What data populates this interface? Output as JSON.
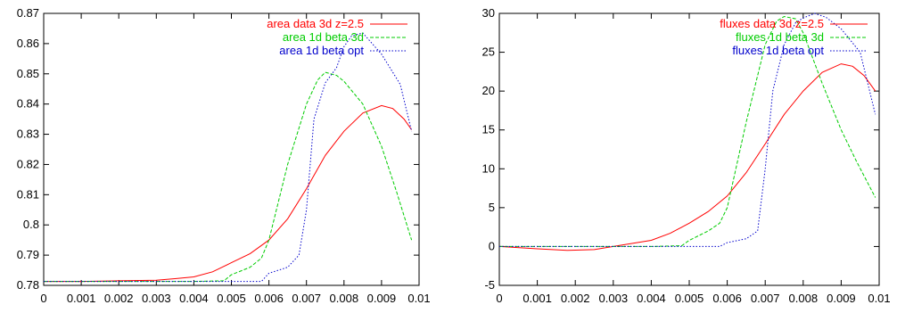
{
  "chart_data": [
    {
      "type": "line",
      "title": "",
      "xlabel": "",
      "ylabel": "",
      "xlim": [
        0,
        0.01
      ],
      "ylim": [
        0.78,
        0.87
      ],
      "xticks": [
        "0",
        "0.001",
        "0.002",
        "0.003",
        "0.004",
        "0.005",
        "0.006",
        "0.007",
        "0.008",
        "0.009",
        "0.01"
      ],
      "yticks": [
        "0.78",
        "0.79",
        "0.8",
        "0.81",
        "0.82",
        "0.83",
        "0.84",
        "0.85",
        "0.86",
        "0.87"
      ],
      "grid": false,
      "legend_position": "top-right",
      "series": [
        {
          "name": "area data 3d z=2.5",
          "color": "#ff0000",
          "style": "solid",
          "x": [
            0,
            0.001,
            0.002,
            0.003,
            0.0035,
            0.004,
            0.0045,
            0.005,
            0.0055,
            0.006,
            0.0065,
            0.007,
            0.0075,
            0.008,
            0.0085,
            0.009,
            0.0093,
            0.0096,
            0.0098
          ],
          "y": [
            0.7813,
            0.7813,
            0.7815,
            0.7817,
            0.7822,
            0.7828,
            0.7845,
            0.7875,
            0.7905,
            0.795,
            0.802,
            0.812,
            0.823,
            0.831,
            0.837,
            0.8395,
            0.8385,
            0.835,
            0.8315
          ]
        },
        {
          "name": "area 1d beta 3d",
          "color": "#00cc00",
          "style": "dashed",
          "x": [
            0,
            0.001,
            0.002,
            0.003,
            0.004,
            0.0048,
            0.005,
            0.0055,
            0.0058,
            0.006,
            0.0065,
            0.007,
            0.0073,
            0.0075,
            0.0078,
            0.008,
            0.0085,
            0.009,
            0.0094,
            0.0098
          ],
          "y": [
            0.7813,
            0.7813,
            0.7813,
            0.7813,
            0.7813,
            0.7815,
            0.7835,
            0.786,
            0.789,
            0.795,
            0.82,
            0.84,
            0.848,
            0.8505,
            0.8495,
            0.8475,
            0.84,
            0.826,
            0.811,
            0.795
          ]
        },
        {
          "name": "area 1d beta opt",
          "color": "#0000cc",
          "style": "dotted",
          "x": [
            0,
            0.001,
            0.002,
            0.003,
            0.004,
            0.005,
            0.0058,
            0.006,
            0.0065,
            0.0068,
            0.007,
            0.0072,
            0.0075,
            0.0078,
            0.008,
            0.0082,
            0.0085,
            0.009,
            0.0095,
            0.0098
          ],
          "y": [
            0.7813,
            0.7813,
            0.7813,
            0.7813,
            0.7813,
            0.7813,
            0.7813,
            0.784,
            0.786,
            0.79,
            0.805,
            0.835,
            0.847,
            0.852,
            0.859,
            0.8625,
            0.8635,
            0.8565,
            0.8465,
            0.831
          ]
        }
      ]
    },
    {
      "type": "line",
      "title": "",
      "xlabel": "",
      "ylabel": "",
      "xlim": [
        0,
        0.01
      ],
      "ylim": [
        -5,
        30
      ],
      "xticks": [
        "0",
        "0.001",
        "0.002",
        "0.003",
        "0.004",
        "0.005",
        "0.006",
        "0.007",
        "0.008",
        "0.009",
        "0.01"
      ],
      "yticks": [
        "-5",
        "0",
        "5",
        "10",
        "15",
        "20",
        "25",
        "30"
      ],
      "grid": false,
      "legend_position": "top-right",
      "series": [
        {
          "name": "fluxes data 3d z=2.5",
          "color": "#ff0000",
          "style": "solid",
          "x": [
            0,
            0.001,
            0.0018,
            0.0025,
            0.003,
            0.004,
            0.0045,
            0.005,
            0.0055,
            0.006,
            0.0065,
            0.007,
            0.0075,
            0.008,
            0.0085,
            0.009,
            0.0093,
            0.0096,
            0.0099
          ],
          "y": [
            0,
            -0.3,
            -0.5,
            -0.4,
            0,
            0.8,
            1.7,
            3,
            4.5,
            6.5,
            9.5,
            13.2,
            17,
            20,
            22.4,
            23.5,
            23.2,
            22,
            20
          ]
        },
        {
          "name": "fluxes 1d beta 3d",
          "color": "#00cc00",
          "style": "dashed",
          "x": [
            0,
            0.001,
            0.002,
            0.003,
            0.004,
            0.0048,
            0.005,
            0.0055,
            0.0058,
            0.006,
            0.0065,
            0.007,
            0.0073,
            0.0075,
            0.0078,
            0.008,
            0.0085,
            0.009,
            0.0094,
            0.0099
          ],
          "y": [
            0,
            0,
            0,
            0,
            0,
            0.1,
            0.8,
            2,
            3,
            5,
            16,
            26,
            29,
            29.6,
            29.3,
            27.5,
            21,
            15,
            11,
            6.3
          ]
        },
        {
          "name": "fluxes 1d beta opt",
          "color": "#0000cc",
          "style": "dotted",
          "x": [
            0,
            0.001,
            0.002,
            0.003,
            0.004,
            0.005,
            0.0058,
            0.006,
            0.0065,
            0.0068,
            0.007,
            0.0072,
            0.0075,
            0.0078,
            0.008,
            0.0083,
            0.0086,
            0.009,
            0.0095,
            0.0099
          ],
          "y": [
            0,
            0,
            0,
            0,
            0,
            0,
            0,
            0.5,
            1,
            2,
            10,
            20,
            26,
            28.8,
            29.4,
            30,
            29.5,
            28,
            25,
            17
          ]
        }
      ]
    }
  ]
}
